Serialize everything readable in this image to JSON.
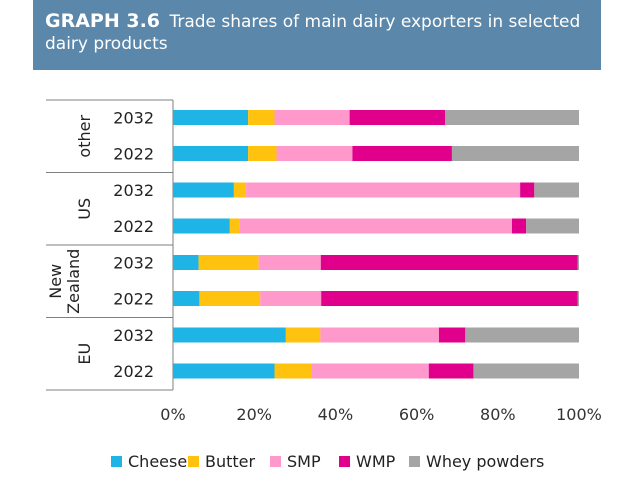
{
  "header": {
    "graph_number": "GRAPH 3.6",
    "title": "Trade shares of main dairy exporters in selected dairy products"
  },
  "chart_data": {
    "type": "bar",
    "orientation": "horizontal",
    "stacked": true,
    "xlim": [
      0,
      100
    ],
    "x_ticks": [
      "0%",
      "20%",
      "40%",
      "60%",
      "80%",
      "100%"
    ],
    "legend_position": "bottom",
    "groups": [
      {
        "label": "other",
        "rows": [
          "2032",
          "2022"
        ]
      },
      {
        "label": "US",
        "rows": [
          "2032",
          "2022"
        ]
      },
      {
        "label": "New Zealand",
        "rows": [
          "2032",
          "2022"
        ]
      },
      {
        "label": "EU",
        "rows": [
          "2032",
          "2022"
        ]
      }
    ],
    "series": [
      {
        "name": "Cheese",
        "color": "#1fb4e6",
        "values": [
          18.5,
          18.5,
          15,
          14,
          6.3,
          6.5,
          27.8,
          25
        ]
      },
      {
        "name": "Butter",
        "color": "#ffc20e",
        "values": [
          6.5,
          7,
          3,
          2.3,
          14.8,
          15,
          8.5,
          9
        ]
      },
      {
        "name": "SMP",
        "color": "#ff99cc",
        "values": [
          18.5,
          18.7,
          67.5,
          67.2,
          15.3,
          15,
          29.2,
          29
        ]
      },
      {
        "name": "WMP",
        "color": "#e0008c",
        "values": [
          23.5,
          24.5,
          3.5,
          3.5,
          63.3,
          63.2,
          6.5,
          11
        ]
      },
      {
        "name": "Whey powders",
        "color": "#a5a5a5",
        "values": [
          33,
          31.3,
          11,
          13,
          0.3,
          0.3,
          28,
          26
        ]
      }
    ]
  }
}
